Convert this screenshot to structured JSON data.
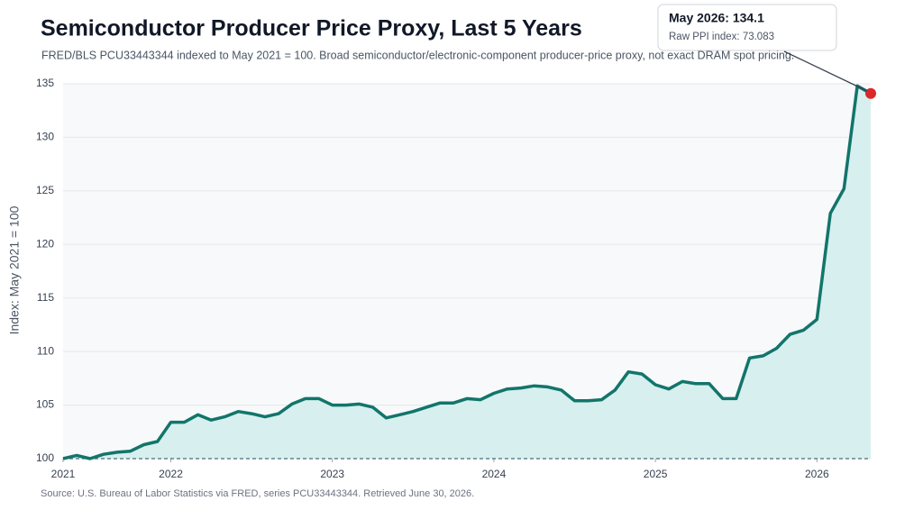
{
  "chart_data": {
    "type": "area-line",
    "title": "Semiconductor Producer Price Proxy, Last 5 Years",
    "subtitle": "FRED/BLS PCU33443344 indexed to May 2021 = 100. Broad semiconductor/electronic-component producer-price proxy, not exact DRAM spot pricing.",
    "y_label": "Index: May 2021 = 100",
    "source": "Source: U.S. Bureau of Labor Statistics via FRED, series PCU33443344. Retrieved June 30, 2026.",
    "annotation": {
      "title": "May 2026: 134.1",
      "text": "Raw PPI index: 73.083"
    },
    "color": "#12756b",
    "fill": "#d7efee",
    "marker_color": "#dc2828",
    "x": [
      2021.333,
      2021.417,
      2021.5,
      2021.583,
      2021.667,
      2021.75,
      2021.833,
      2021.917,
      2022,
      2022.083,
      2022.167,
      2022.25,
      2022.333,
      2022.417,
      2022.5,
      2022.583,
      2022.667,
      2022.75,
      2022.833,
      2022.917,
      2023,
      2023.083,
      2023.167,
      2023.25,
      2023.333,
      2023.417,
      2023.5,
      2023.583,
      2023.667,
      2023.75,
      2023.833,
      2023.917,
      2024,
      2024.083,
      2024.167,
      2024.25,
      2024.333,
      2024.417,
      2024.5,
      2024.583,
      2024.667,
      2024.75,
      2024.833,
      2024.917,
      2025,
      2025.083,
      2025.167,
      2025.25,
      2025.333,
      2025.417,
      2025.5,
      2025.583,
      2025.667,
      2025.75,
      2025.833,
      2025.917,
      2026,
      2026.083,
      2026.167,
      2026.25,
      2026.333
    ],
    "values": [
      100.0,
      100.3,
      100.0,
      100.4,
      100.6,
      100.7,
      101.3,
      101.6,
      103.4,
      103.4,
      104.1,
      103.6,
      103.9,
      104.4,
      104.2,
      103.9,
      104.2,
      105.1,
      105.6,
      105.6,
      105.0,
      105.0,
      105.1,
      104.8,
      103.8,
      104.1,
      104.4,
      104.8,
      105.2,
      105.2,
      105.6,
      105.5,
      106.1,
      106.5,
      106.6,
      106.8,
      106.7,
      106.4,
      105.4,
      105.4,
      105.5,
      106.4,
      108.1,
      107.9,
      106.9,
      106.5,
      107.2,
      107.0,
      107.0,
      105.6,
      105.6,
      109.4,
      109.6,
      110.3,
      111.6,
      112.0,
      113.0,
      122.9,
      125.2,
      134.8,
      134.1
    ],
    "xlim": [
      2021.333,
      2026.333
    ],
    "xticks": [
      {
        "value": 2021.333,
        "label": "2021"
      },
      2022,
      2023,
      2024,
      2025,
      2026
    ],
    "ylim": [
      100,
      135
    ],
    "yticks": [
      100,
      105,
      110,
      115,
      120,
      125,
      130,
      135
    ],
    "grid": true
  }
}
